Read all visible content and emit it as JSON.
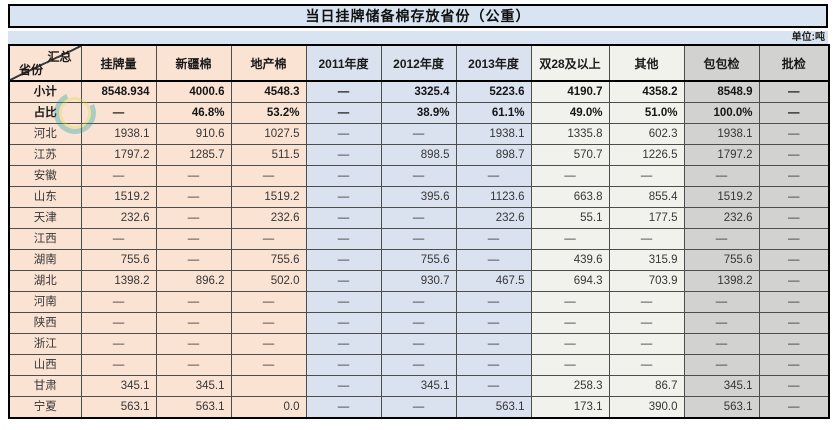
{
  "title": "当日挂牌储备棉存放省份（公重）",
  "unit_label": "单位:吨",
  "colors": {
    "band_blue": "#d8e4f2",
    "peach": "#fbe3d4",
    "year_blue": "#dae1ef",
    "light_gray": "#f2f2ed",
    "gray": "#d2d2d0"
  },
  "table": {
    "corner": {
      "top": "汇总",
      "bottom": "省份"
    },
    "columns": [
      "挂牌量",
      "新疆棉",
      "地产棉",
      "2011年度",
      "2012年度",
      "2013年度",
      "双28及以上",
      "其他",
      "包包检",
      "批检"
    ],
    "rows": [
      {
        "name": "小计",
        "bold": true,
        "values": [
          "8548.934",
          "4000.6",
          "4548.3",
          "—",
          "3325.4",
          "5223.6",
          "4190.7",
          "4358.2",
          "8548.9",
          "—"
        ]
      },
      {
        "name": "占比",
        "bold": true,
        "values": [
          "—",
          "46.8%",
          "53.2%",
          "—",
          "38.9%",
          "61.1%",
          "49.0%",
          "51.0%",
          "100.0%",
          "—"
        ]
      },
      {
        "name": "河北",
        "bold": false,
        "values": [
          "1938.1",
          "910.6",
          "1027.5",
          "—",
          "—",
          "1938.1",
          "1335.8",
          "602.3",
          "1938.1",
          "—"
        ]
      },
      {
        "name": "江苏",
        "bold": false,
        "values": [
          "1797.2",
          "1285.7",
          "511.5",
          "—",
          "898.5",
          "898.7",
          "570.7",
          "1226.5",
          "1797.2",
          "—"
        ]
      },
      {
        "name": "安徽",
        "bold": false,
        "values": [
          "—",
          "—",
          "—",
          "—",
          "—",
          "—",
          "—",
          "—",
          "—",
          "—"
        ]
      },
      {
        "name": "山东",
        "bold": false,
        "values": [
          "1519.2",
          "—",
          "1519.2",
          "—",
          "395.6",
          "1123.6",
          "663.8",
          "855.4",
          "1519.2",
          "—"
        ]
      },
      {
        "name": "天津",
        "bold": false,
        "values": [
          "232.6",
          "—",
          "232.6",
          "—",
          "—",
          "232.6",
          "55.1",
          "177.5",
          "232.6",
          "—"
        ]
      },
      {
        "name": "江西",
        "bold": false,
        "values": [
          "—",
          "—",
          "—",
          "—",
          "—",
          "—",
          "—",
          "—",
          "—",
          "—"
        ]
      },
      {
        "name": "湖南",
        "bold": false,
        "values": [
          "755.6",
          "—",
          "755.6",
          "—",
          "755.6",
          "—",
          "439.6",
          "315.9",
          "755.6",
          "—"
        ]
      },
      {
        "name": "湖北",
        "bold": false,
        "values": [
          "1398.2",
          "896.2",
          "502.0",
          "—",
          "930.7",
          "467.5",
          "694.3",
          "703.9",
          "1398.2",
          "—"
        ]
      },
      {
        "name": "河南",
        "bold": false,
        "values": [
          "—",
          "—",
          "—",
          "—",
          "—",
          "—",
          "—",
          "—",
          "—",
          "—"
        ]
      },
      {
        "name": "陕西",
        "bold": false,
        "values": [
          "—",
          "—",
          "—",
          "—",
          "—",
          "—",
          "—",
          "—",
          "—",
          "—"
        ]
      },
      {
        "name": "浙江",
        "bold": false,
        "values": [
          "—",
          "—",
          "—",
          "—",
          "—",
          "—",
          "—",
          "—",
          "—",
          "—"
        ]
      },
      {
        "name": "山西",
        "bold": false,
        "values": [
          "—",
          "—",
          "—",
          "—",
          "—",
          "—",
          "—",
          "—",
          "—",
          "—"
        ]
      },
      {
        "name": "甘肃",
        "bold": false,
        "values": [
          "345.1",
          "345.1",
          "",
          "—",
          "345.1",
          "—",
          "258.3",
          "86.7",
          "345.1",
          "—"
        ]
      },
      {
        "name": "宁夏",
        "bold": false,
        "values": [
          "563.1",
          "563.1",
          "0.0",
          "—",
          "—",
          "563.1",
          "173.1",
          "390.0",
          "563.1",
          "—"
        ]
      }
    ]
  }
}
